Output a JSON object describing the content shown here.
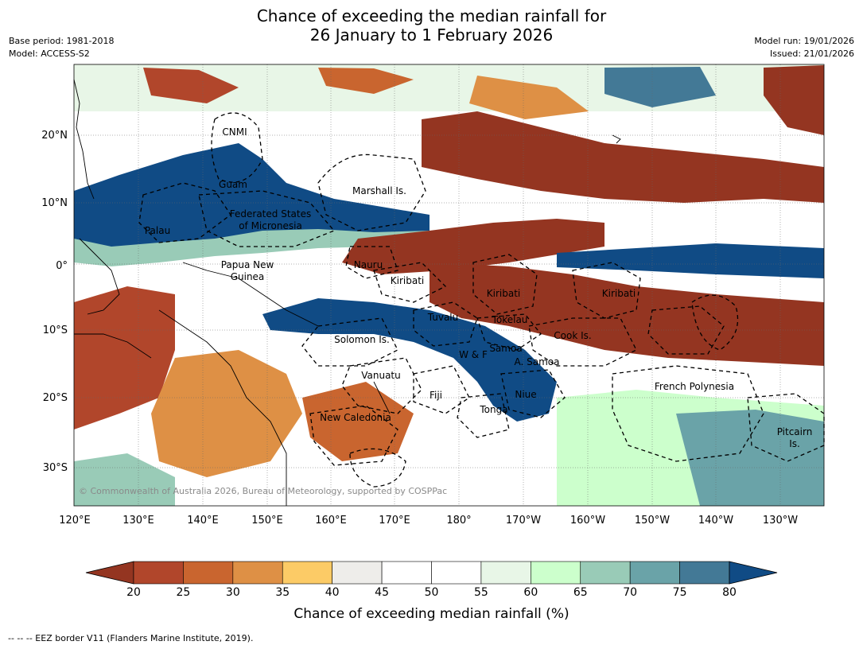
{
  "header": {
    "title_line1": "Chance of exceeding the median rainfall for",
    "title_line2": "26 January to 1 February 2026",
    "base_period": "Base period: 1981-2018",
    "model": "Model: ACCESS-S2",
    "model_run": "Model run: 19/01/2026",
    "issued": "Issued: 21/01/2026"
  },
  "map": {
    "lat_labels": [
      "20°N",
      "10°N",
      "0°",
      "10°S",
      "20°S",
      "30°S"
    ],
    "lon_labels": [
      "120°E",
      "130°E",
      "140°E",
      "150°E",
      "160°E",
      "170°E",
      "180°",
      "170°W",
      "160°W",
      "150°W",
      "140°W",
      "130°W"
    ],
    "regions": [
      "CNMI",
      "Guam",
      "Marshall Is.",
      "Federated States",
      "of Micronesia",
      "Palau",
      "Papua New",
      "Guinea",
      "Nauru",
      "Kiribati",
      "Kiribati",
      "Kiribati",
      "Tuvalu",
      "Tokelau",
      "Cook Is.",
      "Solomon Is.",
      "W & F",
      "Samoa",
      "A. Samoa",
      "Vanuatu",
      "Fiji",
      "Niue",
      "Tonga",
      "French Polynesia",
      "New Caledonia",
      "Pitcairn",
      "Is."
    ],
    "copyright": "© Commonwealth of Australia 2026, Bureau of Meteorology, supported by COSPPac"
  },
  "colorbar": {
    "ticks": [
      "20",
      "25",
      "30",
      "35",
      "40",
      "45",
      "50",
      "55",
      "60",
      "65",
      "70",
      "75",
      "80"
    ],
    "colors": [
      "#943521",
      "#b1462b",
      "#c9652f",
      "#de9045",
      "#fccb66",
      "#eeedea",
      "#ffffff",
      "#ffffff",
      "#e8f6e7",
      "#ccffcc",
      "#99cbb7",
      "#6aa3a8",
      "#437996",
      "#104b85"
    ],
    "title": "Chance of exceeding median rainfall (%)"
  },
  "footer": {
    "legend": "--  --  -- EEZ border V11 (Flanders Marine Institute, 2019)."
  }
}
